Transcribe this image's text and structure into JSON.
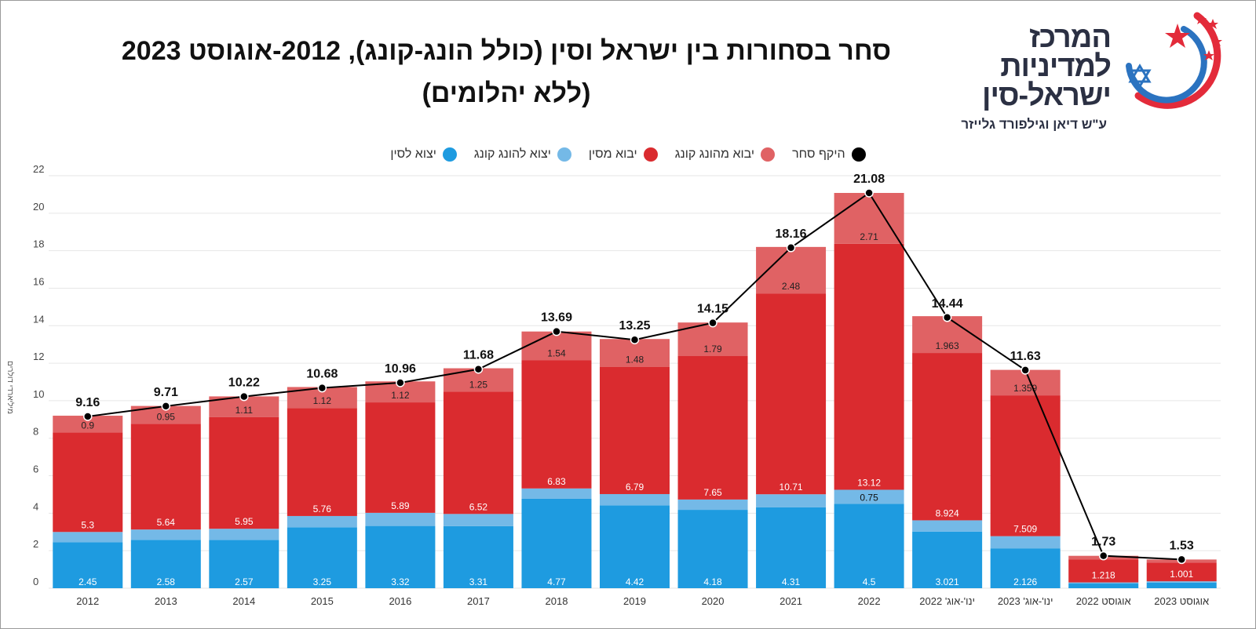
{
  "title_line1": "סחר בסחורות בין ישראל וסין (כולל הונג-קונג), 2012-אוגוסט 2023",
  "title_line2": "(ללא יהלומים)",
  "logo": {
    "line1": "המרכז",
    "line2": "למדיניות",
    "line3": "ישראל-סין",
    "subtitle": "ע\"ש דיאן וגילפורד גלייזר",
    "colors": {
      "text": "#2b3043",
      "red": "#e32b3a",
      "blue": "#2b73c0"
    }
  },
  "legend": [
    {
      "label": "היקף סחר",
      "color": "#000000"
    },
    {
      "label": "יבוא מהונג קונג",
      "color": "#e06264"
    },
    {
      "label": "יבוא מסין",
      "color": "#da2b2f"
    },
    {
      "label": "יצוא להונג קונג",
      "color": "#74b9e7"
    },
    {
      "label": "יצוא לסין",
      "color": "#1e9be0"
    }
  ],
  "chart_data": {
    "type": "bar",
    "stacked": true,
    "categories": [
      "2012",
      "2013",
      "2014",
      "2015",
      "2016",
      "2017",
      "2018",
      "2019",
      "2020",
      "2021",
      "2022",
      "ינו'-אוג' 2022",
      "ינו'-אוג' 2023",
      "אוגוסט 2022",
      "אוגוסט 2023"
    ],
    "ylabel": "מיליארדי דולרים",
    "ylim": [
      0,
      22
    ],
    "yticks": [
      0,
      2,
      4,
      6,
      8,
      10,
      12,
      14,
      16,
      18,
      20,
      22
    ],
    "grid": true,
    "legend_position": "top-center",
    "series": [
      {
        "name": "יצוא לסין",
        "color": "#1e9be0",
        "values": [
          2.45,
          2.58,
          2.57,
          3.25,
          3.32,
          3.31,
          4.77,
          4.42,
          4.18,
          4.31,
          4.5,
          3.021,
          2.126,
          0.25,
          0.3
        ],
        "labels": [
          "2.45",
          "2.58",
          "2.57",
          "3.25",
          "3.32",
          "3.31",
          "4.77",
          "4.42",
          "4.18",
          "4.31",
          "4.5",
          "3.021",
          "2.126",
          "",
          ""
        ]
      },
      {
        "name": "יצוא להונג קונג",
        "color": "#74b9e7",
        "values": [
          0.55,
          0.55,
          0.6,
          0.6,
          0.7,
          0.65,
          0.55,
          0.6,
          0.55,
          0.7,
          0.75,
          0.6,
          0.65,
          0.06,
          0.07
        ],
        "labels": [
          "",
          "",
          "",
          "",
          "",
          "",
          "",
          "",
          "",
          "",
          "0.75",
          "",
          "",
          "",
          ""
        ]
      },
      {
        "name": "יבוא מסין",
        "color": "#da2b2f",
        "values": [
          5.3,
          5.64,
          5.95,
          5.76,
          5.89,
          6.52,
          6.83,
          6.79,
          7.65,
          10.71,
          13.12,
          8.924,
          7.509,
          1.218,
          1.001
        ],
        "labels": [
          "5.3",
          "5.64",
          "5.95",
          "5.76",
          "5.89",
          "6.52",
          "6.83",
          "6.79",
          "7.65",
          "10.71",
          "13.12",
          "8.924",
          "7.509",
          "1.218",
          "1.001"
        ]
      },
      {
        "name": "יבוא מהונג קונג",
        "color": "#e06264",
        "values": [
          0.9,
          0.95,
          1.11,
          1.12,
          1.12,
          1.25,
          1.54,
          1.48,
          1.79,
          2.48,
          2.71,
          1.963,
          1.359,
          0.2,
          0.16
        ],
        "labels": [
          "0.9",
          "0.95",
          "1.11",
          "1.12",
          "1.12",
          "1.25",
          "1.54",
          "1.48",
          "1.79",
          "2.48",
          "2.71",
          "1.963",
          "1.359",
          "",
          ""
        ]
      }
    ],
    "line": {
      "name": "היקף סחר",
      "color": "#000000",
      "values": [
        9.16,
        9.71,
        10.22,
        10.68,
        10.96,
        11.68,
        13.69,
        13.25,
        14.15,
        18.16,
        21.08,
        14.44,
        11.63,
        1.73,
        1.53
      ]
    }
  }
}
